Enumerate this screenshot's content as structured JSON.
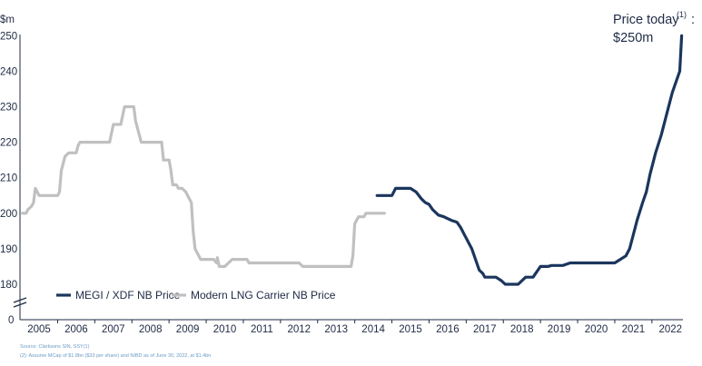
{
  "chart_data": {
    "type": "line",
    "ylabel": "$m",
    "ylim": [
      180,
      250
    ],
    "yticks": [
      180,
      190,
      200,
      210,
      220,
      230,
      240,
      250
    ],
    "y_zero_tick": "0",
    "y_axis_break": true,
    "x_tick_labels": [
      "2005",
      "2006",
      "2007",
      "2008",
      "2009",
      "2010",
      "2011",
      "2012",
      "2013",
      "2014",
      "2015",
      "2016",
      "2017",
      "2018",
      "2019",
      "2020",
      "2021",
      "2022"
    ],
    "grid": false,
    "legend_position": "bottom-left",
    "colors": {
      "megi": "#1b365d",
      "lng": "#c0c0c0",
      "text": "#1f2a44",
      "footnote": "#6a9bc4"
    },
    "series": [
      {
        "name": "MEGI / XDF NB Price",
        "color": "#1b365d",
        "points": [
          [
            2014.1,
            205
          ],
          [
            2014.5,
            205
          ],
          [
            2014.6,
            207
          ],
          [
            2014.9,
            207
          ],
          [
            2015.0,
            207
          ],
          [
            2015.15,
            206
          ],
          [
            2015.3,
            204
          ],
          [
            2015.4,
            203
          ],
          [
            2015.5,
            202.5
          ],
          [
            2015.6,
            201
          ],
          [
            2015.75,
            199.5
          ],
          [
            2015.9,
            199
          ],
          [
            2016.0,
            198.5
          ],
          [
            2016.1,
            198
          ],
          [
            2016.25,
            197.5
          ],
          [
            2016.35,
            196
          ],
          [
            2016.45,
            194
          ],
          [
            2016.55,
            192
          ],
          [
            2016.65,
            190
          ],
          [
            2016.75,
            187
          ],
          [
            2016.85,
            184
          ],
          [
            2016.95,
            183
          ],
          [
            2017.0,
            182
          ],
          [
            2017.3,
            182
          ],
          [
            2017.45,
            181
          ],
          [
            2017.55,
            180
          ],
          [
            2017.9,
            180
          ],
          [
            2018.1,
            182
          ],
          [
            2018.3,
            182
          ],
          [
            2018.5,
            185
          ],
          [
            2018.7,
            185
          ],
          [
            2018.8,
            185.3
          ],
          [
            2019.1,
            185.3
          ],
          [
            2019.3,
            186
          ],
          [
            2020.2,
            186
          ],
          [
            2020.5,
            186
          ],
          [
            2020.65,
            187
          ],
          [
            2020.8,
            188
          ],
          [
            2020.9,
            190
          ],
          [
            2021.0,
            194
          ],
          [
            2021.1,
            198
          ],
          [
            2021.25,
            203
          ],
          [
            2021.35,
            206
          ],
          [
            2021.45,
            211
          ],
          [
            2021.6,
            217
          ],
          [
            2021.75,
            222
          ],
          [
            2021.9,
            228
          ],
          [
            2022.05,
            234
          ],
          [
            2022.15,
            237
          ],
          [
            2022.25,
            240
          ],
          [
            2022.3,
            250
          ]
        ]
      },
      {
        "name": "Modern LNG Carrier NB Price",
        "color": "#c0c0c0",
        "points": [
          [
            2004.55,
            200
          ],
          [
            2004.65,
            200
          ],
          [
            2004.7,
            201
          ],
          [
            2004.8,
            202
          ],
          [
            2004.85,
            203
          ],
          [
            2004.9,
            207
          ],
          [
            2004.95,
            206
          ],
          [
            2005.0,
            205
          ],
          [
            2005.1,
            205
          ],
          [
            2005.5,
            205
          ],
          [
            2005.55,
            206
          ],
          [
            2005.6,
            212
          ],
          [
            2005.7,
            216
          ],
          [
            2005.8,
            217
          ],
          [
            2006.0,
            217
          ],
          [
            2006.05,
            219
          ],
          [
            2006.1,
            220
          ],
          [
            2006.4,
            220
          ],
          [
            2006.8,
            220
          ],
          [
            2006.9,
            220
          ],
          [
            2007.0,
            225
          ],
          [
            2007.2,
            225
          ],
          [
            2007.3,
            230
          ],
          [
            2007.55,
            230
          ],
          [
            2007.6,
            226
          ],
          [
            2007.75,
            220
          ],
          [
            2008.2,
            220
          ],
          [
            2008.3,
            220
          ],
          [
            2008.35,
            215
          ],
          [
            2008.5,
            215
          ],
          [
            2008.55,
            212
          ],
          [
            2008.6,
            208
          ],
          [
            2008.7,
            208
          ],
          [
            2008.75,
            207
          ],
          [
            2008.85,
            207
          ],
          [
            2008.95,
            206
          ],
          [
            2009.0,
            205
          ],
          [
            2009.1,
            203
          ],
          [
            2009.15,
            195
          ],
          [
            2009.2,
            190
          ],
          [
            2009.3,
            188
          ],
          [
            2009.35,
            187
          ],
          [
            2009.5,
            187
          ],
          [
            2009.7,
            187
          ],
          [
            2009.78,
            186
          ],
          [
            2009.8,
            187.5
          ],
          [
            2009.85,
            185
          ],
          [
            2010.0,
            185
          ],
          [
            2010.1,
            186
          ],
          [
            2010.2,
            187
          ],
          [
            2010.6,
            187
          ],
          [
            2010.65,
            186
          ],
          [
            2011.0,
            186
          ],
          [
            2012.0,
            186
          ],
          [
            2012.1,
            185
          ],
          [
            2013.4,
            185
          ],
          [
            2013.45,
            188
          ],
          [
            2013.5,
            197
          ],
          [
            2013.6,
            199
          ],
          [
            2013.75,
            199
          ],
          [
            2013.8,
            200
          ],
          [
            2014.3,
            200
          ]
        ]
      }
    ],
    "annotation": {
      "text_1": "Price today",
      "sup": "(1)",
      "colon": ":",
      "text_2": "$250m",
      "x": 2022.3,
      "y": 250
    }
  },
  "footnotes": [
    "Source: Clarksons SIN, SSY(1)",
    "(2): Assume MCap of $1.8bn ($33 per share) and NIBD as of June 30, 2022, at $1.4bn"
  ]
}
